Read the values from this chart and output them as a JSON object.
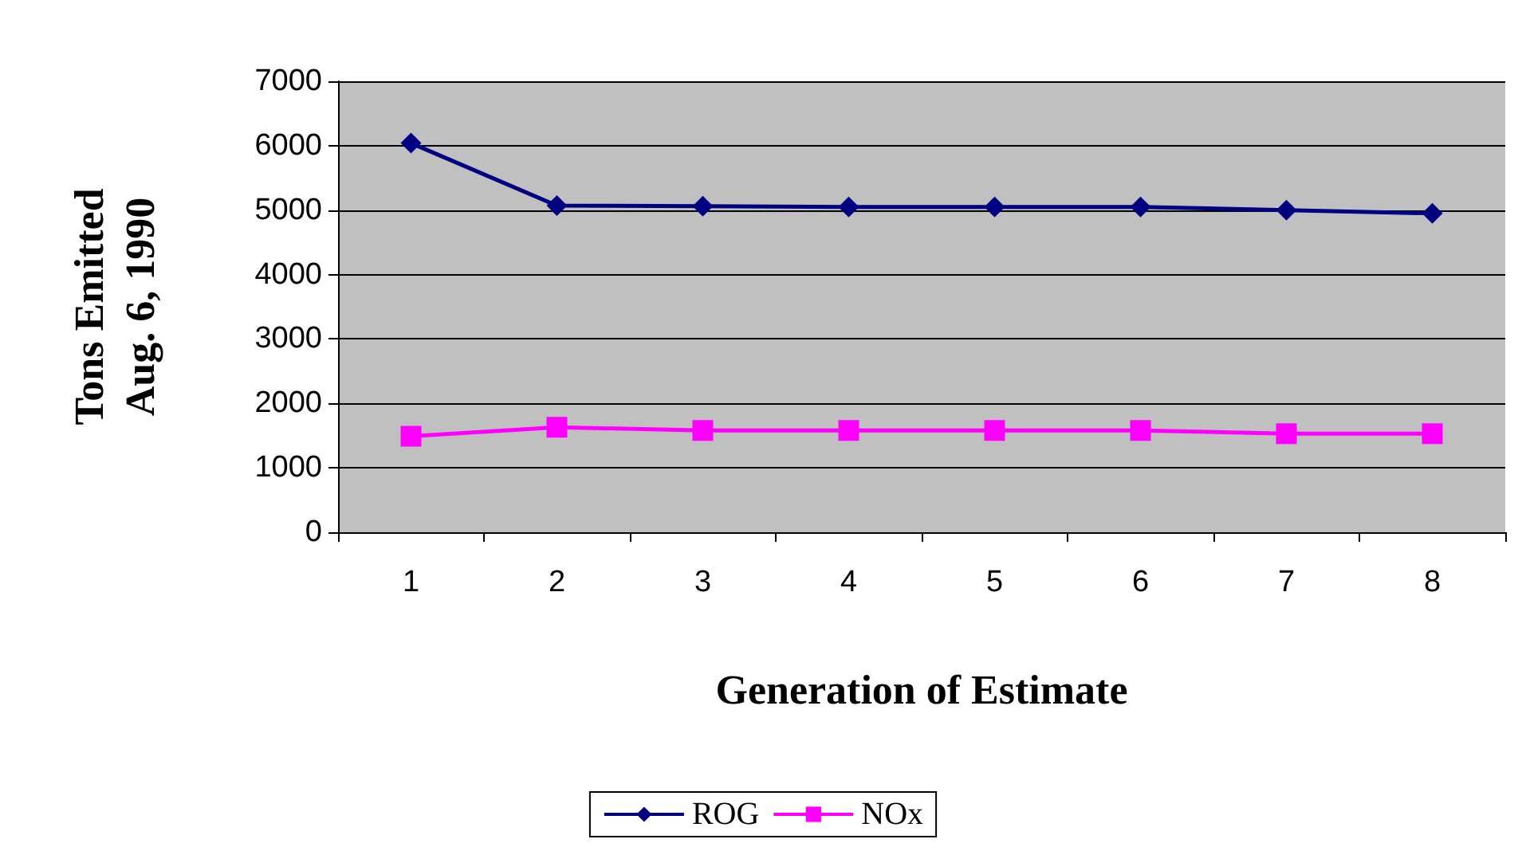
{
  "chart_data": {
    "type": "line",
    "xlabel": "Generation of Estimate",
    "ylabel": "Tons Emitted\nAug. 6, 1990",
    "categories": [
      "1",
      "2",
      "3",
      "4",
      "5",
      "6",
      "7",
      "8"
    ],
    "series": [
      {
        "name": "ROG",
        "color": "#000080",
        "marker": "diamond",
        "values": [
          6040,
          5070,
          5060,
          5050,
          5050,
          5050,
          5000,
          4950
        ]
      },
      {
        "name": "NOx",
        "color": "#ff00ff",
        "marker": "square",
        "values": [
          1490,
          1630,
          1580,
          1580,
          1580,
          1580,
          1530,
          1530
        ]
      }
    ],
    "ylim": [
      0,
      7000
    ],
    "yticks": [
      0,
      1000,
      2000,
      3000,
      4000,
      5000,
      6000,
      7000
    ],
    "grid": "y",
    "legend": "bottom",
    "line_style": "solid"
  }
}
